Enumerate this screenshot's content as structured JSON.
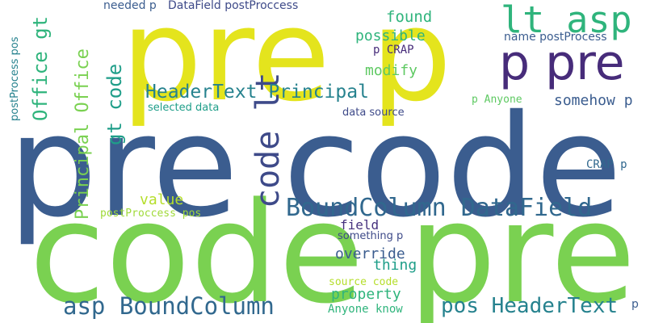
{
  "words": [
    {
      "text": "pre code",
      "color": "#3b5d8f"
    },
    {
      "text": "code pre",
      "color": "#7ad151"
    },
    {
      "text": "pre p",
      "color": "#e4e41d"
    },
    {
      "text": "p pre",
      "color": "#472c7a"
    },
    {
      "text": "lt asp",
      "color": "#2fb47c"
    },
    {
      "text": "code lt",
      "color": "#3e4a89"
    },
    {
      "text": "BoundColumn DataField",
      "color": "#31688e"
    },
    {
      "text": "asp BoundColumn",
      "color": "#31688e"
    },
    {
      "text": "pos HeaderText",
      "color": "#26828e"
    },
    {
      "text": "HeaderText Principal",
      "color": "#26828e"
    },
    {
      "text": "Principal Office",
      "color": "#7ad151"
    },
    {
      "text": "Office gt",
      "color": "#2fb47c"
    },
    {
      "text": "gt code",
      "color": "#1f9e89"
    },
    {
      "text": "found",
      "color": "#2fb47c"
    },
    {
      "text": "possible",
      "color": "#2fb47c"
    },
    {
      "text": "modify",
      "color": "#5ec962"
    },
    {
      "text": "somehow p",
      "color": "#3b5d8f"
    },
    {
      "text": "override",
      "color": "#3b5d8f"
    },
    {
      "text": "thing",
      "color": "#1f9e89"
    },
    {
      "text": "property",
      "color": "#2fb47c"
    },
    {
      "text": "value",
      "color": "#b5de2b"
    },
    {
      "text": "field",
      "color": "#46327e"
    },
    {
      "text": "needed p",
      "color": "#3b5d8f"
    },
    {
      "text": "DataField postProccess",
      "color": "#3e4a89"
    },
    {
      "text": "name postProcess",
      "color": "#3b5d8f"
    },
    {
      "text": "p CRAP",
      "color": "#472c7a"
    },
    {
      "text": "selected data",
      "color": "#1f9e89"
    },
    {
      "text": "data source",
      "color": "#3e4a89"
    },
    {
      "text": "p Anyone",
      "color": "#5ec962"
    },
    {
      "text": "CRAP p",
      "color": "#31688e"
    },
    {
      "text": "postProccess pos",
      "color": "#a0da39"
    },
    {
      "text": "something p",
      "color": "#3e4a89"
    },
    {
      "text": "source code",
      "color": "#b5de2b"
    },
    {
      "text": "Anyone know",
      "color": "#2fb47c"
    },
    {
      "text": "postProcess pos",
      "color": "#26828e"
    },
    {
      "text": "p",
      "color": "#3b5d8f"
    }
  ]
}
